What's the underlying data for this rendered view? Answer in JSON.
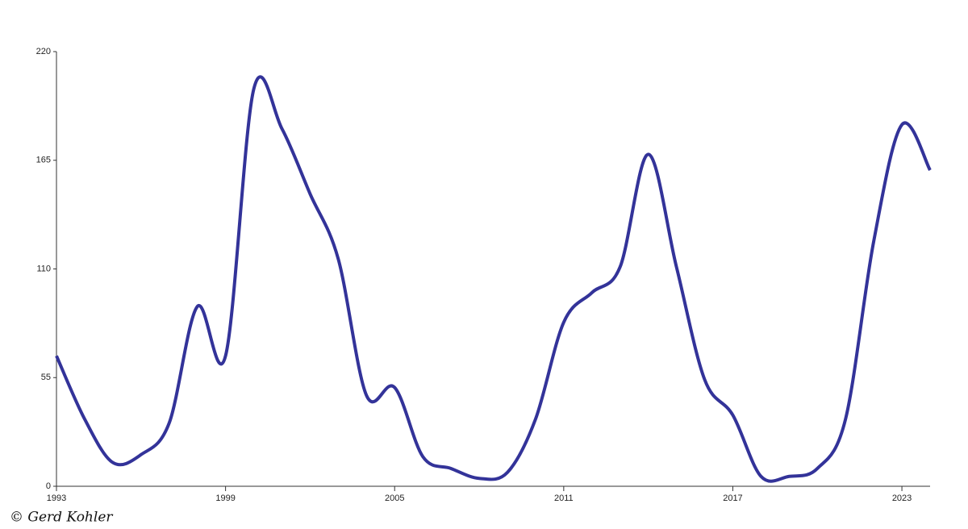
{
  "chart_data": {
    "type": "line",
    "x": [
      1993,
      1994,
      1995,
      1996,
      1997,
      1998,
      1999,
      2000,
      2001,
      2002,
      2003,
      2004,
      2005,
      2006,
      2007,
      2008,
      2009,
      2010,
      2011,
      2012,
      2013,
      2014,
      2015,
      2016,
      2017,
      2018,
      2019,
      2020,
      2021,
      2022,
      2023,
      2024
    ],
    "series": [
      {
        "color": "#333399",
        "values": [
          66,
          34,
          12,
          16,
          32,
          91,
          66,
          201,
          181,
          148,
          115,
          46,
          50,
          15,
          9,
          4,
          7,
          34,
          83,
          98,
          111,
          168,
          111,
          54,
          36,
          5,
          5,
          9,
          34,
          124,
          183,
          160
        ]
      }
    ],
    "xlim": [
      1993,
      2024
    ],
    "xticks": [
      1993,
      1999,
      2005,
      2011,
      2017,
      2023
    ],
    "ylim": [
      0,
      220
    ],
    "yticks": [
      0,
      55,
      110,
      165,
      220
    ],
    "credit": "© Gerd Kohler"
  }
}
